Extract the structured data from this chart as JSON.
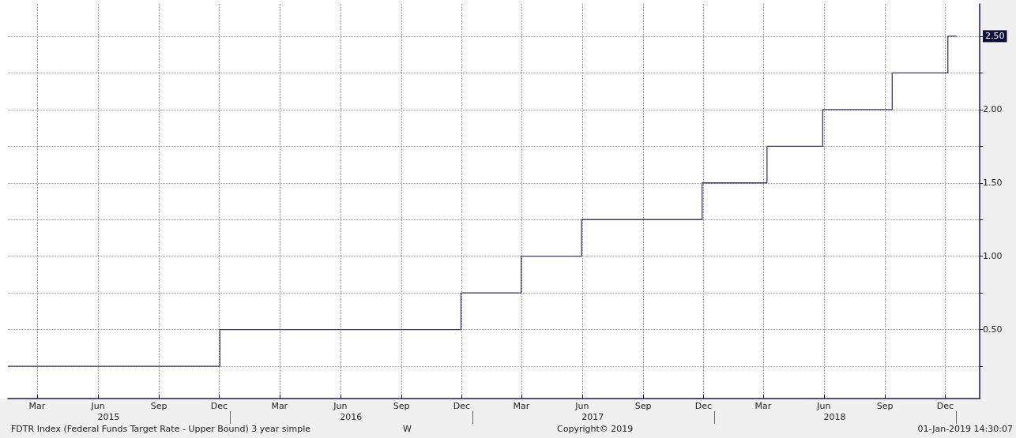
{
  "chart_data": {
    "type": "step",
    "x": [
      "2015-01-30",
      "2015-12-16",
      "2016-12-14",
      "2017-03-15",
      "2017-06-14",
      "2017-12-13",
      "2018-03-21",
      "2018-06-13",
      "2018-09-26",
      "2018-12-19",
      "2019-01-01"
    ],
    "series": [
      {
        "color": "#3a3a6e",
        "values": [
          0.25,
          0.5,
          0.75,
          1.0,
          1.25,
          1.5,
          1.75,
          2.0,
          2.25,
          2.5,
          2.5
        ]
      }
    ],
    "xlim": [
      "2015-01-30",
      "2019-02-05"
    ],
    "xticks": [
      {
        "value": "2015-03-15",
        "label": "Mar"
      },
      {
        "value": "2015-06-15",
        "label": "Jun"
      },
      {
        "value": "2015-09-15",
        "label": "Sep"
      },
      {
        "value": "2015-12-15",
        "label": "Dec"
      },
      {
        "value": "2016-03-15",
        "label": "Mar"
      },
      {
        "value": "2016-06-15",
        "label": "Jun"
      },
      {
        "value": "2016-09-15",
        "label": "Sep"
      },
      {
        "value": "2016-12-15",
        "label": "Dec"
      },
      {
        "value": "2017-03-15",
        "label": "Mar"
      },
      {
        "value": "2017-06-15",
        "label": "Jun"
      },
      {
        "value": "2017-09-15",
        "label": "Sep"
      },
      {
        "value": "2017-12-15",
        "label": "Dec"
      },
      {
        "value": "2018-03-15",
        "label": "Mar"
      },
      {
        "value": "2018-06-15",
        "label": "Jun"
      },
      {
        "value": "2018-09-15",
        "label": "Sep"
      },
      {
        "value": "2018-12-15",
        "label": "Dec"
      }
    ],
    "x2lim": [
      "2015-01-30",
      "2019-02-05"
    ],
    "x2ticks": [
      {
        "value": "2015-07-01",
        "label": "2015"
      },
      {
        "value": "2016-01-01",
        "label": null
      },
      {
        "value": "2016-07-01",
        "label": "2016"
      },
      {
        "value": "2017-01-01",
        "label": null
      },
      {
        "value": "2017-07-01",
        "label": "2017"
      },
      {
        "value": "2018-01-01",
        "label": null
      },
      {
        "value": "2018-07-01",
        "label": "2018"
      },
      {
        "value": "2019-01-01",
        "label": null
      }
    ],
    "ylim": [
      0.03,
      2.72
    ],
    "yticks": [
      {
        "value": 0.25,
        "label": null
      },
      {
        "value": 0.5,
        "label": "0.50"
      },
      {
        "value": 0.75,
        "label": null
      },
      {
        "value": 1.0,
        "label": "1.00"
      },
      {
        "value": 1.25,
        "label": null
      },
      {
        "value": 1.5,
        "label": "1.50"
      },
      {
        "value": 1.75,
        "label": null
      },
      {
        "value": 2.0,
        "label": "2.00"
      },
      {
        "value": 2.25,
        "label": null
      },
      {
        "value": 2.5,
        "label": "2.50"
      }
    ],
    "grid": true,
    "annotations": [
      "FDTR Index (Federal Funds Target Rate - Upper Bound) 3 year simple",
      "W",
      "Copyright© 2019",
      "01-Jan-2019 14:30:07"
    ]
  }
}
